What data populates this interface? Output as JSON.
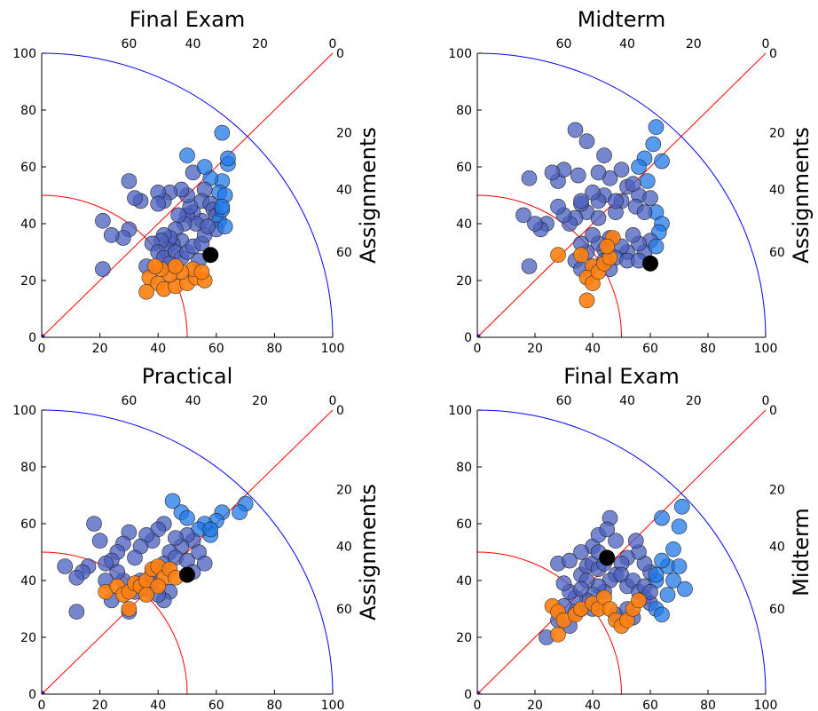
{
  "chart_data": [
    {
      "type": "scatter",
      "title": "Final Exam",
      "right_label": "Assignments",
      "xlim": [
        0,
        100
      ],
      "ylim": [
        0,
        100
      ],
      "x_ticks": [
        "0",
        "20",
        "40",
        "60",
        "80",
        "100"
      ],
      "y_ticks": [
        "0",
        "20",
        "40",
        "60",
        "80",
        "100"
      ],
      "top_ticks": [
        "60",
        "40",
        "20",
        "0"
      ],
      "right_ticks": [
        "0",
        "20",
        "40",
        "60"
      ],
      "highlight": {
        "x": 58,
        "y": 29
      },
      "points_blue": [
        [
          62,
          72
        ],
        [
          64,
          61
        ],
        [
          64,
          63
        ],
        [
          62,
          55
        ],
        [
          61,
          51
        ],
        [
          63,
          50
        ],
        [
          58,
          56
        ],
        [
          56,
          52
        ],
        [
          55,
          48
        ],
        [
          58,
          47
        ],
        [
          59,
          45
        ],
        [
          60,
          43
        ],
        [
          61,
          41
        ],
        [
          55,
          41
        ],
        [
          52,
          44
        ],
        [
          53,
          40
        ],
        [
          50,
          43
        ],
        [
          51,
          46
        ],
        [
          49,
          40
        ],
        [
          47,
          43
        ],
        [
          46,
          38
        ],
        [
          48,
          34
        ],
        [
          45,
          33
        ],
        [
          44,
          35
        ],
        [
          43,
          31
        ],
        [
          42,
          36
        ],
        [
          41,
          34
        ],
        [
          38,
          33
        ],
        [
          40,
          30
        ],
        [
          42,
          28
        ],
        [
          46,
          30
        ],
        [
          48,
          28
        ],
        [
          50,
          30
        ],
        [
          52,
          32
        ],
        [
          55,
          33
        ],
        [
          56,
          36
        ],
        [
          60,
          38
        ],
        [
          62,
          45
        ],
        [
          50,
          50
        ],
        [
          48,
          52
        ],
        [
          52,
          58
        ],
        [
          56,
          60
        ],
        [
          50,
          64
        ],
        [
          44,
          51
        ],
        [
          42,
          48
        ],
        [
          40,
          51
        ],
        [
          40,
          47
        ],
        [
          34,
          48
        ],
        [
          32,
          49
        ],
        [
          30,
          55
        ],
        [
          30,
          38
        ],
        [
          28,
          35
        ],
        [
          24,
          36
        ],
        [
          21,
          41
        ],
        [
          21,
          24
        ],
        [
          36,
          25
        ],
        [
          44,
          26
        ],
        [
          54,
          27
        ],
        [
          57,
          39
        ],
        [
          63,
          39
        ],
        [
          62,
          46
        ]
      ],
      "points_orange": [
        [
          37,
          21
        ],
        [
          40,
          19
        ],
        [
          36,
          16
        ],
        [
          42,
          17
        ],
        [
          46,
          18
        ],
        [
          50,
          19
        ],
        [
          53,
          21
        ],
        [
          56,
          20
        ],
        [
          52,
          24
        ],
        [
          48,
          23
        ],
        [
          44,
          22
        ],
        [
          41,
          24
        ],
        [
          39,
          25
        ],
        [
          46,
          25
        ],
        [
          55,
          23
        ]
      ]
    },
    {
      "type": "scatter",
      "title": "Midterm",
      "right_label": "Assignments",
      "xlim": [
        0,
        100
      ],
      "ylim": [
        0,
        100
      ],
      "x_ticks": [
        "0",
        "20",
        "40",
        "60",
        "80",
        "100"
      ],
      "y_ticks": [
        "0",
        "20",
        "40",
        "60",
        "80",
        "100"
      ],
      "top_ticks": [
        "60",
        "40",
        "20",
        "0"
      ],
      "right_ticks": [
        "0",
        "20",
        "40",
        "60"
      ],
      "highlight": {
        "x": 60,
        "y": 26
      },
      "points_blue": [
        [
          62,
          74
        ],
        [
          61,
          68
        ],
        [
          64,
          62
        ],
        [
          58,
          63
        ],
        [
          56,
          60
        ],
        [
          59,
          55
        ],
        [
          56,
          50
        ],
        [
          52,
          53
        ],
        [
          55,
          46
        ],
        [
          50,
          48
        ],
        [
          48,
          44
        ],
        [
          46,
          56
        ],
        [
          44,
          50
        ],
        [
          42,
          48
        ],
        [
          40,
          51
        ],
        [
          38,
          44
        ],
        [
          36,
          47
        ],
        [
          34,
          42
        ],
        [
          32,
          40
        ],
        [
          30,
          43
        ],
        [
          28,
          46
        ],
        [
          28,
          55
        ],
        [
          30,
          59
        ],
        [
          26,
          58
        ],
        [
          35,
          57
        ],
        [
          36,
          48
        ],
        [
          42,
          58
        ],
        [
          44,
          64
        ],
        [
          50,
          59
        ],
        [
          54,
          54
        ],
        [
          60,
          49
        ],
        [
          62,
          44
        ],
        [
          64,
          40
        ],
        [
          63,
          37
        ],
        [
          60,
          34
        ],
        [
          58,
          30
        ],
        [
          56,
          33
        ],
        [
          54,
          36
        ],
        [
          52,
          30
        ],
        [
          50,
          32
        ],
        [
          48,
          28
        ],
        [
          46,
          35
        ],
        [
          44,
          31
        ],
        [
          42,
          33
        ],
        [
          40,
          36
        ],
        [
          38,
          30
        ],
        [
          36,
          33
        ],
        [
          34,
          27
        ],
        [
          36,
          24
        ],
        [
          40,
          25
        ],
        [
          44,
          27
        ],
        [
          46,
          24
        ],
        [
          52,
          27
        ],
        [
          56,
          27
        ],
        [
          24,
          40
        ],
        [
          22,
          38
        ],
        [
          20,
          40
        ],
        [
          18,
          56
        ],
        [
          18,
          25
        ],
        [
          16,
          43
        ],
        [
          34,
          73
        ],
        [
          38,
          69
        ],
        [
          58,
          44
        ],
        [
          48,
          48
        ],
        [
          42,
          42
        ],
        [
          62,
          32
        ]
      ],
      "points_orange": [
        [
          28,
          29
        ],
        [
          36,
          29
        ],
        [
          40,
          25
        ],
        [
          38,
          21
        ],
        [
          40,
          19
        ],
        [
          42,
          23
        ],
        [
          44,
          26
        ],
        [
          46,
          28
        ],
        [
          47,
          35
        ],
        [
          45,
          32
        ],
        [
          38,
          13
        ]
      ]
    },
    {
      "type": "scatter",
      "title": "Practical",
      "right_label": "Assignments",
      "xlim": [
        0,
        100
      ],
      "ylim": [
        0,
        100
      ],
      "x_ticks": [
        "0",
        "20",
        "40",
        "60",
        "80",
        "100"
      ],
      "y_ticks": [
        "0",
        "20",
        "40",
        "60",
        "80",
        "100"
      ],
      "top_ticks": [
        "60",
        "40",
        "20",
        "0"
      ],
      "right_ticks": [
        "0",
        "20",
        "40",
        "60"
      ],
      "highlight": {
        "x": 50,
        "y": 42
      },
      "points_blue": [
        [
          70,
          67
        ],
        [
          68,
          64
        ],
        [
          62,
          64
        ],
        [
          60,
          61
        ],
        [
          58,
          56
        ],
        [
          56,
          60
        ],
        [
          54,
          58
        ],
        [
          52,
          54
        ],
        [
          50,
          56
        ],
        [
          48,
          52
        ],
        [
          46,
          55
        ],
        [
          44,
          50
        ],
        [
          42,
          60
        ],
        [
          45,
          68
        ],
        [
          48,
          64
        ],
        [
          50,
          62
        ],
        [
          40,
          58
        ],
        [
          38,
          54
        ],
        [
          36,
          56
        ],
        [
          34,
          52
        ],
        [
          32,
          48
        ],
        [
          30,
          57
        ],
        [
          28,
          53
        ],
        [
          26,
          50
        ],
        [
          24,
          47
        ],
        [
          22,
          46
        ],
        [
          20,
          54
        ],
        [
          18,
          60
        ],
        [
          16,
          45
        ],
        [
          14,
          43
        ],
        [
          12,
          41
        ],
        [
          8,
          45
        ],
        [
          12,
          29
        ],
        [
          30,
          29
        ],
        [
          34,
          40
        ],
        [
          38,
          43
        ],
        [
          42,
          46
        ],
        [
          46,
          48
        ],
        [
          50,
          47
        ],
        [
          54,
          50
        ],
        [
          58,
          58
        ],
        [
          44,
          36
        ],
        [
          42,
          33
        ],
        [
          40,
          35
        ],
        [
          38,
          40
        ],
        [
          36,
          37
        ],
        [
          32,
          36
        ],
        [
          28,
          40
        ],
        [
          26,
          43
        ],
        [
          22,
          40
        ],
        [
          24,
          33
        ],
        [
          52,
          43
        ],
        [
          56,
          46
        ]
      ],
      "points_orange": [
        [
          22,
          36
        ],
        [
          26,
          38
        ],
        [
          28,
          35
        ],
        [
          30,
          36
        ],
        [
          32,
          39
        ],
        [
          34,
          38
        ],
        [
          36,
          40
        ],
        [
          38,
          44
        ],
        [
          40,
          45
        ],
        [
          42,
          41
        ],
        [
          44,
          44
        ],
        [
          46,
          41
        ],
        [
          40,
          38
        ],
        [
          36,
          35
        ],
        [
          30,
          30
        ]
      ]
    },
    {
      "type": "scatter",
      "title": "Final Exam",
      "right_label": "Midterm",
      "xlim": [
        0,
        100
      ],
      "ylim": [
        0,
        100
      ],
      "x_ticks": [
        "0",
        "20",
        "40",
        "60",
        "80",
        "100"
      ],
      "y_ticks": [
        "0",
        "20",
        "40",
        "60",
        "80",
        "100"
      ],
      "top_ticks": [
        "60",
        "40",
        "20",
        "0"
      ],
      "right_ticks": [
        "0",
        "20",
        "40",
        "60"
      ],
      "highlight": {
        "x": 45,
        "y": 48
      },
      "points_blue": [
        [
          71,
          66
        ],
        [
          70,
          59
        ],
        [
          64,
          62
        ],
        [
          68,
          51
        ],
        [
          66,
          45
        ],
        [
          64,
          47
        ],
        [
          62,
          40
        ],
        [
          60,
          43
        ],
        [
          58,
          46
        ],
        [
          56,
          50
        ],
        [
          55,
          54
        ],
        [
          52,
          48
        ],
        [
          50,
          46
        ],
        [
          48,
          42
        ],
        [
          46,
          40
        ],
        [
          44,
          36
        ],
        [
          42,
          38
        ],
        [
          40,
          35
        ],
        [
          38,
          33
        ],
        [
          36,
          30
        ],
        [
          34,
          34
        ],
        [
          32,
          36
        ],
        [
          30,
          39
        ],
        [
          28,
          46
        ],
        [
          32,
          47
        ],
        [
          36,
          42
        ],
        [
          38,
          45
        ],
        [
          40,
          52
        ],
        [
          42,
          56
        ],
        [
          48,
          54
        ],
        [
          50,
          42
        ],
        [
          52,
          38
        ],
        [
          54,
          40
        ],
        [
          56,
          36
        ],
        [
          58,
          34
        ],
        [
          60,
          32
        ],
        [
          62,
          30
        ],
        [
          64,
          28
        ],
        [
          66,
          35
        ],
        [
          68,
          40
        ],
        [
          70,
          45
        ],
        [
          72,
          37
        ],
        [
          46,
          62
        ],
        [
          45,
          58
        ],
        [
          40,
          46
        ],
        [
          38,
          40
        ],
        [
          36,
          37
        ],
        [
          42,
          44
        ],
        [
          44,
          46
        ],
        [
          34,
          29
        ],
        [
          30,
          31
        ],
        [
          28,
          26
        ],
        [
          32,
          24
        ],
        [
          40,
          30
        ],
        [
          48,
          28
        ],
        [
          52,
          30
        ],
        [
          54,
          27
        ],
        [
          58,
          38
        ],
        [
          60,
          36
        ],
        [
          62,
          42
        ],
        [
          24,
          20
        ],
        [
          36,
          50
        ],
        [
          42,
          50
        ]
      ],
      "points_orange": [
        [
          26,
          31
        ],
        [
          28,
          29
        ],
        [
          30,
          26
        ],
        [
          28,
          21
        ],
        [
          34,
          28
        ],
        [
          36,
          30
        ],
        [
          40,
          32
        ],
        [
          42,
          30
        ],
        [
          44,
          34
        ],
        [
          46,
          30
        ],
        [
          48,
          26
        ],
        [
          50,
          24
        ],
        [
          52,
          26
        ],
        [
          54,
          30
        ],
        [
          56,
          33
        ]
      ]
    }
  ]
}
